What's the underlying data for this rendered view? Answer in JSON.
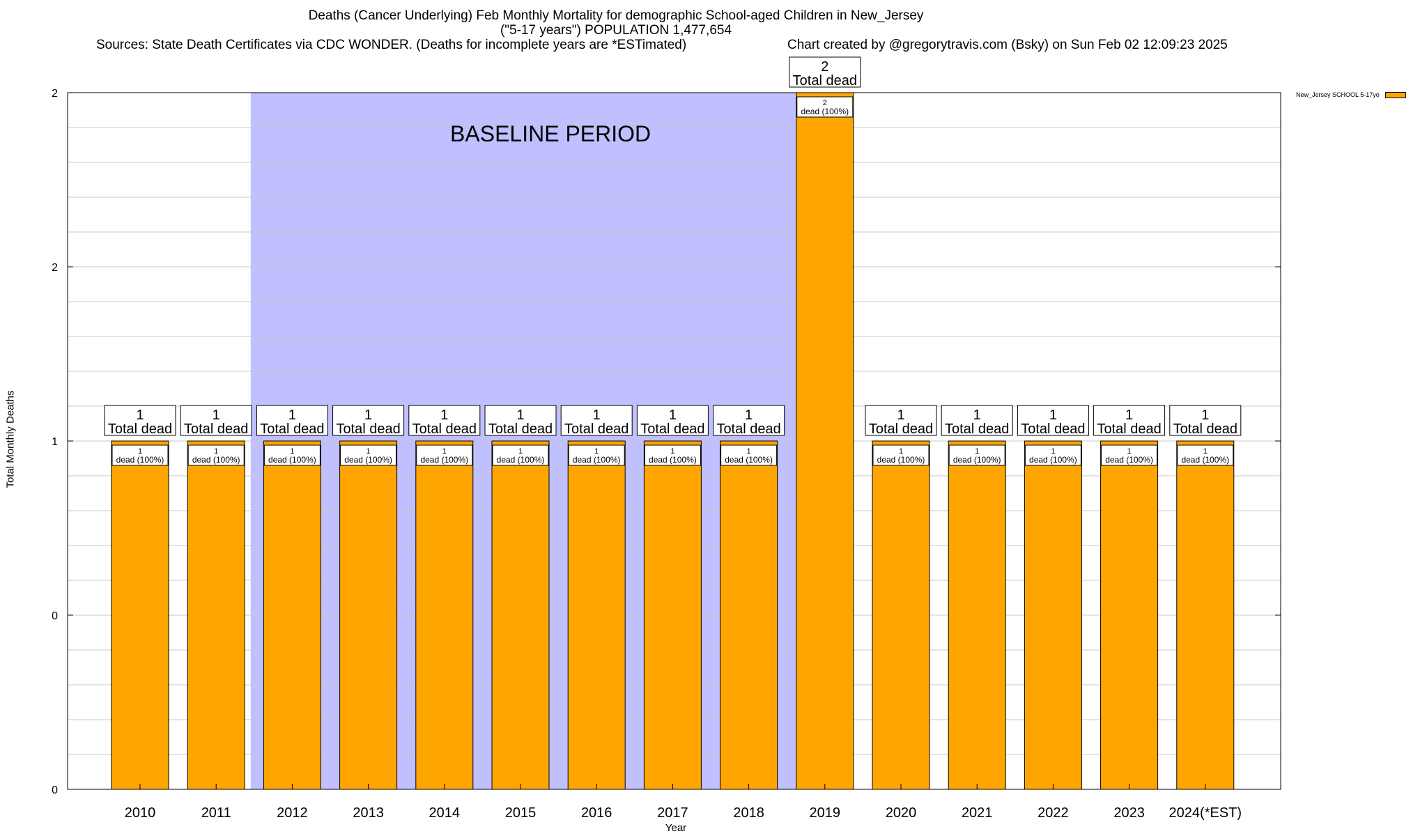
{
  "chart_data": {
    "type": "bar",
    "title_line1": "Deaths (Cancer Underlying) Feb Monthly Mortality for demographic School-aged Children in New_Jersey",
    "title_line2": "(\"5-17 years\") POPULATION 1,477,654",
    "sources": "Sources: State Death Certificates via CDC WONDER. (Deaths for incomplete years are *ESTimated)",
    "credit": "Chart created by @gregorytravis.com (Bsky) on Sun Feb 02 12:09:23 2025",
    "xlabel": "Year",
    "ylabel": "Total Monthly Deaths",
    "baseline_label": "BASELINE PERIOD",
    "baseline_range": [
      "2012",
      "2019"
    ],
    "baseline_color": "#c0c0ff",
    "bar_color": "#ffa500",
    "legend": "New_Jersey SCHOOL 5-17yo",
    "legend_position": "top-right",
    "grid": true,
    "ylim": [
      0,
      2
    ],
    "ytick_labels": [
      "0",
      "0",
      "1",
      "2",
      "2"
    ],
    "categories": [
      "2010",
      "2011",
      "2012",
      "2013",
      "2014",
      "2015",
      "2016",
      "2017",
      "2018",
      "2019",
      "2020",
      "2021",
      "2022",
      "2023",
      "2024(*EST)"
    ],
    "series": [
      {
        "name": "New_Jersey SCHOOL 5-17yo",
        "values": [
          1,
          1,
          1,
          1,
          1,
          1,
          1,
          1,
          1,
          2,
          1,
          1,
          1,
          1,
          1
        ]
      }
    ],
    "total_label_suffix": "Total dead",
    "inner_label_suffix": "dead (100%)"
  }
}
